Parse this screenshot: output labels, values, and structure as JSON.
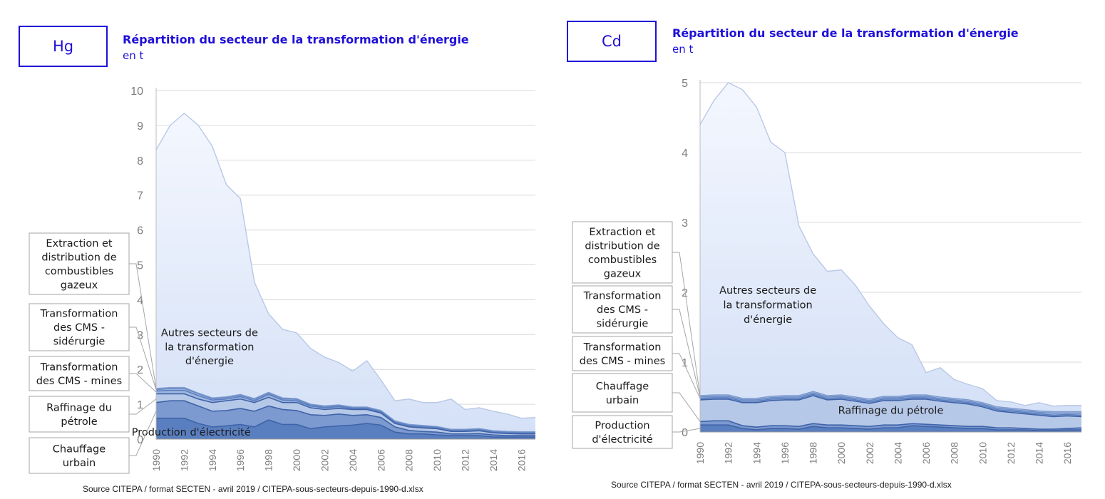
{
  "source_left": "Source CITEPA / format SECTEN - avril 2019 / CITEPA-sous-secteurs-depuis-1990-d.xlsx",
  "source_right": "Source CITEPA / format SECTEN - avril 2019 / CITEPA-sous-secteurs-depuis-1990-d.xlsx",
  "colors": {
    "accent": "#1f10d8",
    "fill_top": "#e8eefc",
    "fill_mid": "#b6c8e8",
    "fill_low": "#7d9ad0",
    "fill_base": "#5a7fc0",
    "line": "#3f63a8",
    "grid": "#d9d9d9"
  },
  "chart_data": [
    {
      "type": "area",
      "pollutant": "Hg",
      "title": "Répartition du secteur de la transformation d'énergie",
      "unit": "en t",
      "ylim": [
        0,
        10
      ],
      "yticks": [
        0,
        1,
        2,
        3,
        4,
        5,
        6,
        7,
        8,
        9,
        10
      ],
      "x": [
        1990,
        1991,
        1992,
        1993,
        1994,
        1995,
        1996,
        1997,
        1998,
        1999,
        2000,
        2001,
        2002,
        2003,
        2004,
        2005,
        2006,
        2007,
        2008,
        2009,
        2010,
        2011,
        2012,
        2013,
        2014,
        2015,
        2016,
        2017
      ],
      "xtick_labels": [
        "1990",
        "1992",
        "1994",
        "1996",
        "1998",
        "2000",
        "2002",
        "2004",
        "2006",
        "2008",
        "2010",
        "2012",
        "2014",
        "2016"
      ],
      "stack_order": [
        "Production d'électricité",
        "Chauffage urbain",
        "Raffinage du pétrole",
        "Transformation des CMS - mines",
        "Transformation des CMS - sidérurgie",
        "Extraction et distribution de combustibles gazeux",
        "Autres secteurs de la transformation d'énergie"
      ],
      "cumulative": {
        "Production d'électricité": [
          0.6,
          0.6,
          0.6,
          0.45,
          0.35,
          0.38,
          0.42,
          0.35,
          0.55,
          0.42,
          0.42,
          0.3,
          0.35,
          0.38,
          0.4,
          0.45,
          0.4,
          0.2,
          0.15,
          0.15,
          0.12,
          0.1,
          0.1,
          0.1,
          0.06,
          0.06,
          0.06,
          0.06
        ],
        "Chauffage urbain": [
          1.05,
          1.1,
          1.1,
          0.95,
          0.8,
          0.82,
          0.88,
          0.8,
          0.95,
          0.85,
          0.82,
          0.7,
          0.68,
          0.72,
          0.68,
          0.7,
          0.62,
          0.35,
          0.25,
          0.22,
          0.2,
          0.15,
          0.15,
          0.16,
          0.12,
          0.1,
          0.1,
          0.1
        ],
        "Raffinage du pétrole": [
          1.3,
          1.3,
          1.3,
          1.15,
          1.05,
          1.1,
          1.15,
          1.05,
          1.2,
          1.05,
          1.05,
          0.9,
          0.85,
          0.88,
          0.85,
          0.85,
          0.75,
          0.45,
          0.35,
          0.32,
          0.3,
          0.22,
          0.22,
          0.24,
          0.18,
          0.16,
          0.15,
          0.15
        ],
        "Transformation des CMS - mines": [
          1.38,
          1.4,
          1.4,
          1.25,
          1.12,
          1.15,
          1.22,
          1.1,
          1.28,
          1.12,
          1.1,
          0.95,
          0.9,
          0.93,
          0.88,
          0.88,
          0.78,
          0.48,
          0.38,
          0.35,
          0.32,
          0.24,
          0.24,
          0.26,
          0.2,
          0.18,
          0.17,
          0.17
        ],
        "Transformation des CMS - sidérurgie": [
          1.42,
          1.45,
          1.45,
          1.3,
          1.16,
          1.19,
          1.26,
          1.14,
          1.32,
          1.16,
          1.14,
          0.98,
          0.93,
          0.96,
          0.9,
          0.9,
          0.8,
          0.5,
          0.4,
          0.37,
          0.34,
          0.26,
          0.26,
          0.28,
          0.22,
          0.2,
          0.19,
          0.19
        ],
        "Extraction et distribution de combustibles gazeux": [
          1.45,
          1.48,
          1.48,
          1.32,
          1.18,
          1.21,
          1.28,
          1.16,
          1.34,
          1.18,
          1.16,
          1.0,
          0.95,
          0.98,
          0.92,
          0.92,
          0.82,
          0.52,
          0.42,
          0.39,
          0.36,
          0.28,
          0.28,
          0.3,
          0.24,
          0.22,
          0.21,
          0.21
        ],
        "Autres secteurs de la transformation d'énergie": [
          8.3,
          9.0,
          9.35,
          9.0,
          8.4,
          7.3,
          6.9,
          4.5,
          3.6,
          3.15,
          3.05,
          2.6,
          2.35,
          2.2,
          1.95,
          2.25,
          1.7,
          1.1,
          1.15,
          1.05,
          1.05,
          1.15,
          0.85,
          0.9,
          0.8,
          0.72,
          0.6,
          0.62
        ]
      },
      "in_chart_labels": [
        {
          "text": "Autres secteurs de",
          "x": 1993.8,
          "y": 2.95
        },
        {
          "text": "la transformation",
          "x": 1993.8,
          "y": 2.55
        },
        {
          "text": "d'énergie",
          "x": 1993.8,
          "y": 2.15
        },
        {
          "text": "Production d'électricité",
          "x": 1992.5,
          "y": 0.1
        }
      ],
      "callouts": [
        {
          "name": "callout-extraction",
          "lines": [
            "Extraction et",
            "distribution de",
            "combustibles",
            "gazeux"
          ],
          "target_year": 1990,
          "target_value": 1.45
        },
        {
          "name": "callout-cms-siderurgie",
          "lines": [
            "Transformation",
            "des CMS -",
            "sidérurgie"
          ],
          "target_year": 1990,
          "target_value": 1.42
        },
        {
          "name": "callout-cms-mines",
          "lines": [
            "Transformation",
            "des CMS - mines"
          ],
          "target_year": 1990,
          "target_value": 1.35
        },
        {
          "name": "callout-raffinage",
          "lines": [
            "Raffinage du",
            "pétrole"
          ],
          "target_year": 1990,
          "target_value": 1.15
        },
        {
          "name": "callout-chauffage",
          "lines": [
            "Chauffage",
            "urbain"
          ],
          "target_year": 1990,
          "target_value": 0.8
        }
      ]
    },
    {
      "type": "area",
      "pollutant": "Cd",
      "title": "Répartition du secteur de la transformation d'énergie",
      "unit": "en t",
      "ylim": [
        0,
        5
      ],
      "yticks": [
        0,
        1,
        2,
        3,
        4,
        5
      ],
      "x": [
        1990,
        1991,
        1992,
        1993,
        1994,
        1995,
        1996,
        1997,
        1998,
        1999,
        2000,
        2001,
        2002,
        2003,
        2004,
        2005,
        2006,
        2007,
        2008,
        2009,
        2010,
        2011,
        2012,
        2013,
        2014,
        2015,
        2016,
        2017
      ],
      "xtick_labels": [
        "1990",
        "1992",
        "1994",
        "1996",
        "1998",
        "2000",
        "2002",
        "2004",
        "2006",
        "2008",
        "2010",
        "2012",
        "2014",
        "2016"
      ],
      "stack_order": [
        "Production d'électricité",
        "Chauffage urbain",
        "Raffinage du pétrole",
        "Transformation des CMS - mines",
        "Transformation des CMS - sidérurgie",
        "Extraction et distribution de combustibles gazeux",
        "Autres secteurs de la transformation d'énergie"
      ],
      "cumulative": {
        "Production d'électricité": [
          0.1,
          0.1,
          0.1,
          0.05,
          0.03,
          0.05,
          0.05,
          0.04,
          0.08,
          0.06,
          0.06,
          0.05,
          0.04,
          0.06,
          0.06,
          0.09,
          0.08,
          0.07,
          0.06,
          0.05,
          0.05,
          0.03,
          0.03,
          0.03,
          0.02,
          0.02,
          0.03,
          0.03
        ],
        "Chauffage urbain": [
          0.15,
          0.16,
          0.16,
          0.09,
          0.07,
          0.09,
          0.09,
          0.08,
          0.12,
          0.1,
          0.1,
          0.09,
          0.08,
          0.1,
          0.1,
          0.12,
          0.11,
          0.1,
          0.09,
          0.08,
          0.08,
          0.06,
          0.06,
          0.05,
          0.04,
          0.04,
          0.05,
          0.06
        ],
        "Raffinage du pétrole": [
          0.46,
          0.47,
          0.47,
          0.42,
          0.42,
          0.45,
          0.46,
          0.46,
          0.52,
          0.46,
          0.47,
          0.44,
          0.41,
          0.45,
          0.45,
          0.47,
          0.47,
          0.44,
          0.42,
          0.4,
          0.36,
          0.3,
          0.28,
          0.26,
          0.24,
          0.22,
          0.23,
          0.22
        ],
        "Transformation des CMS - mines": [
          0.48,
          0.49,
          0.49,
          0.44,
          0.44,
          0.47,
          0.48,
          0.48,
          0.54,
          0.48,
          0.49,
          0.46,
          0.43,
          0.47,
          0.47,
          0.49,
          0.49,
          0.46,
          0.44,
          0.42,
          0.38,
          0.32,
          0.3,
          0.28,
          0.26,
          0.24,
          0.25,
          0.24
        ],
        "Transformation des CMS - sidérurgie": [
          0.5,
          0.51,
          0.51,
          0.46,
          0.46,
          0.49,
          0.5,
          0.5,
          0.56,
          0.5,
          0.51,
          0.48,
          0.45,
          0.49,
          0.49,
          0.51,
          0.51,
          0.48,
          0.46,
          0.44,
          0.4,
          0.34,
          0.32,
          0.3,
          0.28,
          0.27,
          0.27,
          0.27
        ],
        "Extraction et distribution de combustibles gazeux": [
          0.52,
          0.53,
          0.53,
          0.48,
          0.48,
          0.51,
          0.52,
          0.52,
          0.58,
          0.52,
          0.53,
          0.5,
          0.47,
          0.51,
          0.51,
          0.53,
          0.53,
          0.5,
          0.48,
          0.46,
          0.42,
          0.36,
          0.34,
          0.32,
          0.3,
          0.29,
          0.29,
          0.29
        ],
        "Autres secteurs de la transformation d'énergie": [
          4.4,
          4.75,
          5.0,
          4.9,
          4.65,
          4.15,
          4.0,
          2.95,
          2.55,
          2.3,
          2.32,
          2.1,
          1.8,
          1.55,
          1.35,
          1.25,
          0.85,
          0.92,
          0.75,
          0.68,
          0.62,
          0.45,
          0.43,
          0.38,
          0.42,
          0.37,
          0.38,
          0.38
        ]
      },
      "in_chart_labels": [
        {
          "text": "Autres secteurs de",
          "x": 1994.8,
          "y": 1.98
        },
        {
          "text": "la transformation",
          "x": 1994.8,
          "y": 1.77
        },
        {
          "text": "d'énergie",
          "x": 1994.8,
          "y": 1.56
        },
        {
          "text": "Raffinage du pétrole",
          "x": 2003.5,
          "y": 0.26
        }
      ],
      "callouts": [
        {
          "name": "callout-extraction",
          "lines": [
            "Extraction et",
            "distribution de",
            "combustibles",
            "gazeux"
          ],
          "target_year": 1990,
          "target_value": 0.52
        },
        {
          "name": "callout-cms-siderurgie",
          "lines": [
            "Transformation",
            "des CMS -",
            "sidérurgie"
          ],
          "target_year": 1990,
          "target_value": 0.5
        },
        {
          "name": "callout-cms-mines",
          "lines": [
            "Transformation",
            "des CMS - mines"
          ],
          "target_year": 1990,
          "target_value": 0.48
        },
        {
          "name": "callout-chauffage",
          "lines": [
            "Chauffage",
            "urbain"
          ],
          "target_year": 1990,
          "target_value": 0.15
        },
        {
          "name": "callout-production",
          "lines": [
            "Production",
            "d'électricité"
          ],
          "target_year": 1990,
          "target_value": 0.05
        }
      ]
    }
  ]
}
